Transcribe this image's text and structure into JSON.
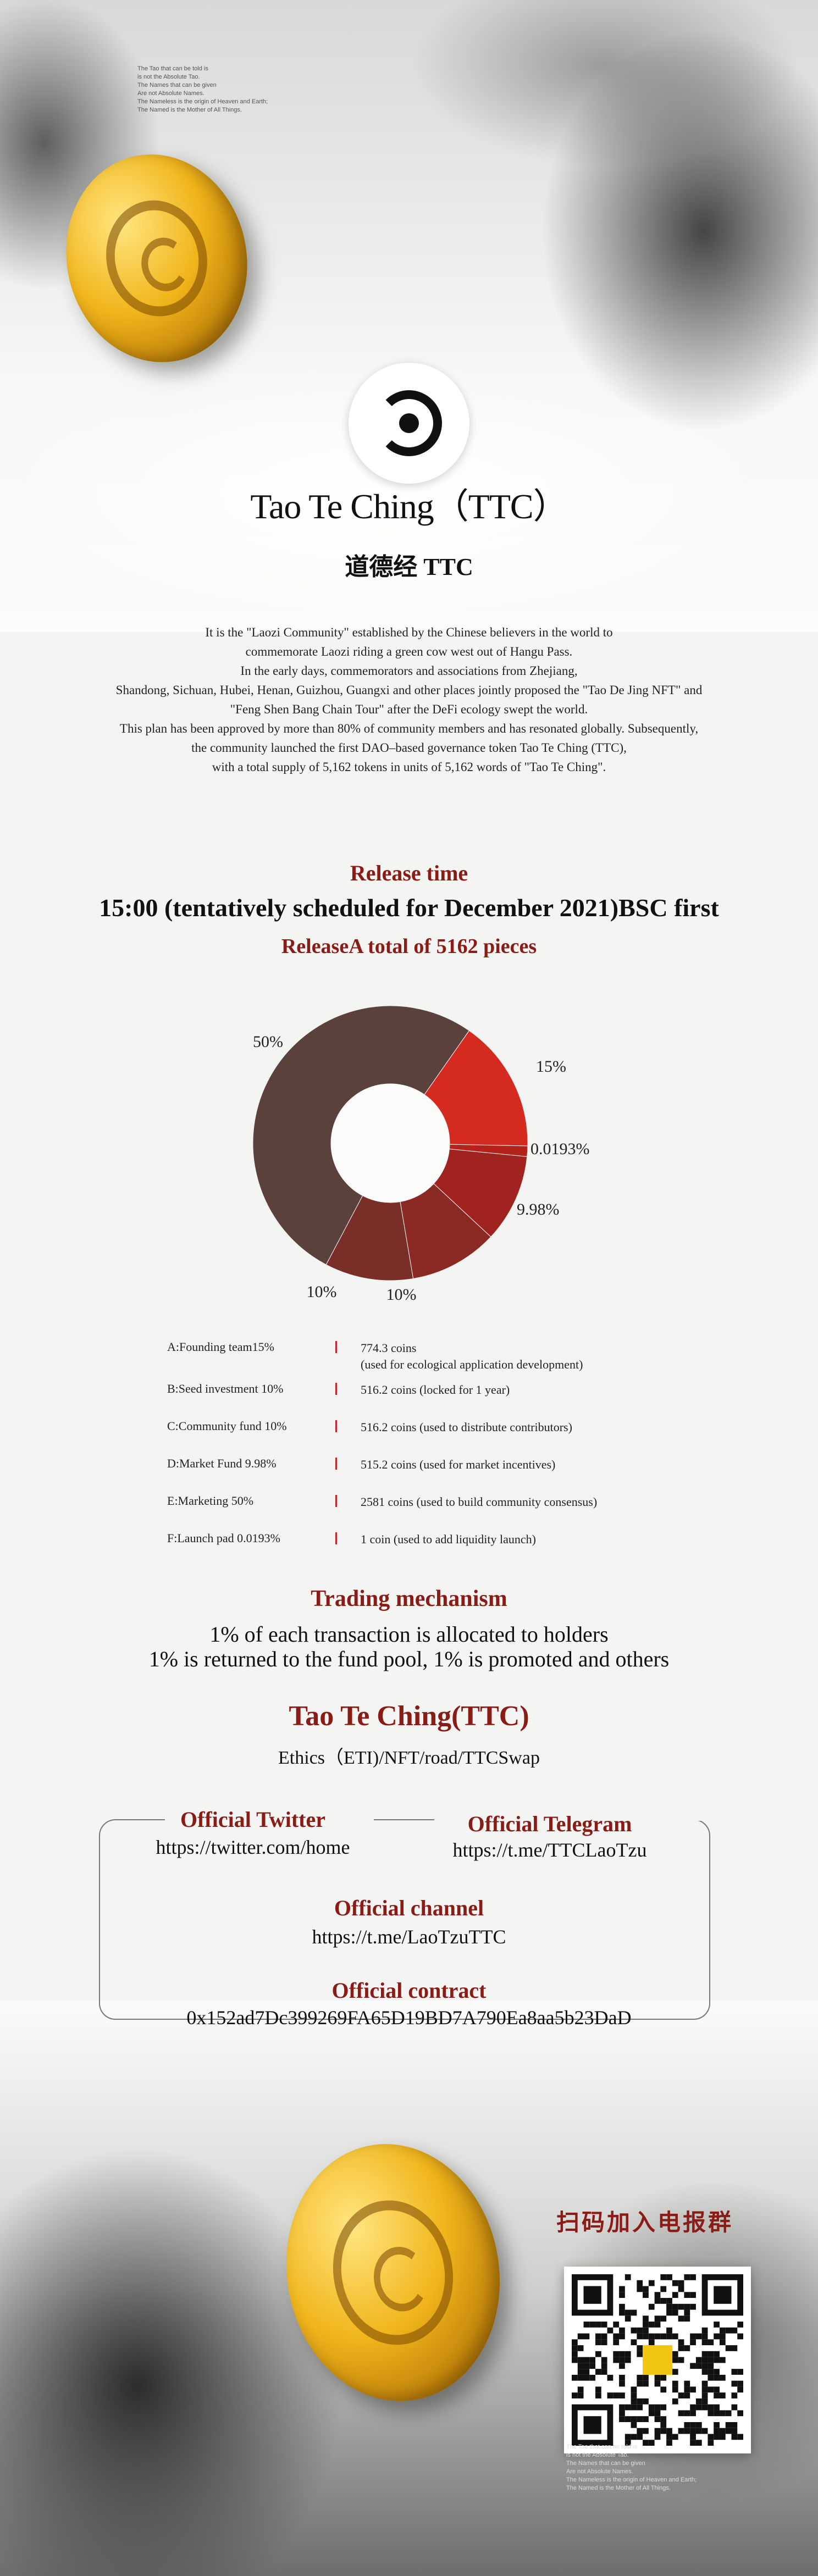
{
  "poem_top": [
    "The Tao that can be told is",
    "is not the Absolute Tao.",
    "The Names that can be given",
    "Are not Absolute Names.",
    "The Nameless is the origin of Heaven and Earth;",
    "The Named is the Mother of All Things."
  ],
  "header": {
    "title": "Tao Te Ching（TTC）",
    "subtitle": "道德经 TTC"
  },
  "intro": [
    "It is the \"Laozi Community\" established by the Chinese believers in the world to",
    "commemorate Laozi riding a green cow west out of Hangu Pass.",
    "In the early days, commemorators and associations from Zhejiang,",
    "Shandong, Sichuan, Hubei, Henan, Guizhou, Guangxi and other places jointly proposed the \"Tao De Jing NFT\" and",
    "\"Feng Shen Bang Chain Tour\" after the DeFi ecology swept the world.",
    "This plan has been approved by more than 80% of community members and has resonated globally. Subsequently,",
    "the community launched the first DAO–based governance token Tao Te Ching (TTC),",
    "with a total supply of 5,162 tokens in units of 5,162 words of \"Tao Te Ching\"."
  ],
  "release": {
    "label": "Release time",
    "time": "15:00 (tentatively scheduled for December 2021)BSC first",
    "total": "ReleaseA total of 5162 pieces"
  },
  "chart_data": {
    "type": "pie",
    "donut": true,
    "slices": [
      {
        "label": "15%",
        "value": 15,
        "color": "#d42a1f"
      },
      {
        "label": "0.0193%",
        "value": 0.0193,
        "color": "#b5221c"
      },
      {
        "label": "9.98%",
        "value": 9.98,
        "color": "#a12320"
      },
      {
        "label": "10%",
        "value": 10,
        "color": "#8b2a25"
      },
      {
        "label": "10%",
        "value": 10,
        "color": "#7a2e28"
      },
      {
        "label": "50%",
        "value": 50,
        "color": "#5a413b"
      }
    ]
  },
  "allocation": [
    {
      "label": "A:Founding team15%",
      "value": "774.3 coins",
      "note": "(used for ecological application development)"
    },
    {
      "label": "B:Seed investment 10%",
      "value": "516.2 coins (locked for 1 year)"
    },
    {
      "label": "C:Community fund 10%",
      "value": "516.2 coins (used to distribute contributors)"
    },
    {
      "label": "D:Market Fund 9.98%",
      "value": "515.2 coins (used for market incentives)"
    },
    {
      "label": "E:Marketing 50%",
      "value": "2581 coins (used to build community consensus)"
    },
    {
      "label": "F:Launch pad 0.0193%",
      "value": "1 coin (used to add liquidity launch)"
    }
  ],
  "trading": {
    "label": "Trading mechanism",
    "line1": "1% of each transaction is allocated to holders",
    "line2": "1% is returned to the fund pool, 1% is promoted and others"
  },
  "brand": {
    "name": "Tao Te Ching(TTC)",
    "ecosystem": "Ethics（ETI)/NFT/road/TTCSwap"
  },
  "links": {
    "twitter_label": "Official Twitter",
    "twitter_url": "https://twitter.com/home",
    "telegram_label": "Official Telegram",
    "telegram_url": "https://t.me/TTCLaoTzu",
    "channel_label": "Official channel",
    "channel_url": "https://t.me/LaoTzuTTC",
    "contract_label": "Official contract",
    "contract_address": "0x152ad7Dc399269FA65D19BD7A790Ea8aa5b23DaD"
  },
  "qr": {
    "title": "扫码加入电报群"
  },
  "poem_bottom": [
    "The Tao that can be told is",
    "is not the Absolute Tao.",
    "The Names that can be given",
    "Are not Absolute Names.",
    "The Nameless is the origin of Heaven and Earth;",
    "The Named is the Mother of All Things."
  ]
}
